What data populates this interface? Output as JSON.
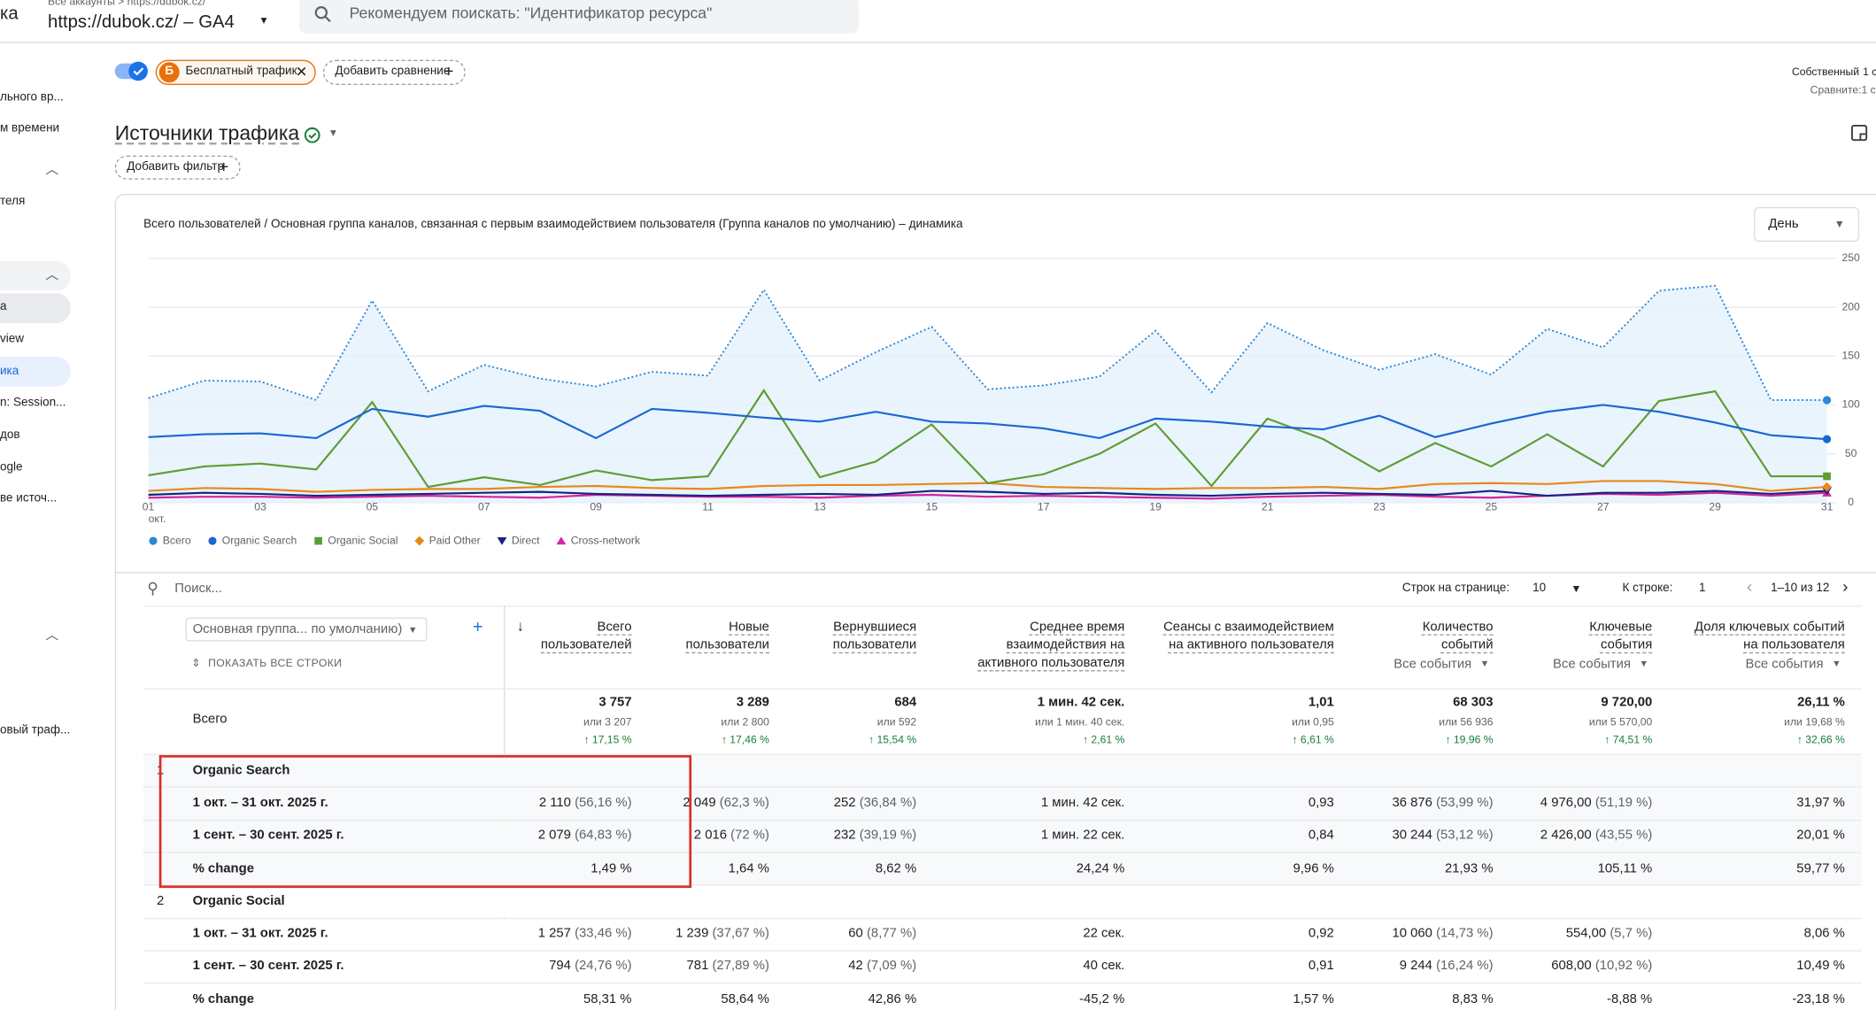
{
  "header": {
    "app": "ка",
    "breadcrumb": "Все аккаунты > https://dubok.cz/",
    "property": "https://dubok.cz/ – GA4",
    "search_placeholder": "Рекомендуем поискать: \"Идентификатор ресурса\""
  },
  "sidebar": [
    "льного вр...",
    "м времени",
    "теля",
    "а",
    "view",
    "ика",
    "n: Session...",
    "дов",
    "ogle",
    "ве источ...",
    "овый траф..."
  ],
  "toolbar": {
    "segment_badge": "Б",
    "segment": "Бесплатный трафик",
    "add_comparison": "Добавить сравнение",
    "date_mode": "Собственный",
    "date_value": "1 с",
    "compare": "Сравните:1 с"
  },
  "report": {
    "title": "Источники трафика",
    "add_filter": "Добавить фильтр"
  },
  "chart_data": {
    "type": "line",
    "title": "Всего пользователей / Основная группа каналов, связанная с первым взаимодействием пользователя (Группа каналов по умолчанию) – динамика",
    "granularity": "День",
    "categories": [
      "01",
      null,
      "03",
      null,
      "05",
      null,
      "07",
      null,
      "09",
      null,
      "11",
      null,
      "13",
      null,
      "15",
      null,
      "17",
      null,
      "19",
      null,
      "21",
      null,
      "23",
      null,
      "25",
      null,
      "27",
      null,
      "29",
      null,
      "31"
    ],
    "x_sublabel": "окт.",
    "ylim": [
      0,
      250
    ],
    "yticks": [
      0,
      50,
      100,
      150,
      200,
      250
    ],
    "grid": true,
    "legend": "bottom",
    "series": [
      {
        "name": "Всего",
        "color": "#2e86d6",
        "dash": "dotted",
        "area": true,
        "marker": "drop",
        "values": [
          107,
          125,
          124,
          105,
          207,
          114,
          141,
          127,
          119,
          134,
          130,
          218,
          125,
          154,
          180,
          116,
          120,
          129,
          176,
          113,
          184,
          156,
          136,
          152,
          131,
          178,
          159,
          217,
          222,
          105,
          105
        ]
      },
      {
        "name": "Organic Search",
        "color": "#1967d2",
        "marker": "circle",
        "values": [
          67,
          70,
          71,
          66,
          96,
          88,
          99,
          94,
          66,
          96,
          92,
          87,
          83,
          93,
          83,
          81,
          76,
          66,
          86,
          83,
          78,
          75,
          89,
          67,
          81,
          93,
          100,
          93,
          82,
          69,
          65
        ]
      },
      {
        "name": "Organic Social",
        "color": "#5f9c32",
        "marker": "square",
        "values": [
          28,
          37,
          40,
          34,
          103,
          16,
          26,
          18,
          33,
          23,
          27,
          115,
          26,
          42,
          80,
          20,
          29,
          50,
          81,
          17,
          86,
          65,
          32,
          61,
          37,
          70,
          37,
          104,
          114,
          27,
          27
        ]
      },
      {
        "name": "Paid Other",
        "color": "#e8891b",
        "marker": "diamond",
        "values": [
          12,
          15,
          14,
          11,
          13,
          14,
          14,
          16,
          17,
          15,
          14,
          17,
          18,
          18,
          19,
          20,
          16,
          15,
          14,
          15,
          15,
          16,
          14,
          19,
          20,
          19,
          22,
          22,
          19,
          12,
          16
        ]
      },
      {
        "name": "Direct",
        "color": "#1a237e",
        "marker": "triangle-down",
        "values": [
          8,
          10,
          9,
          7,
          8,
          9,
          10,
          11,
          9,
          8,
          7,
          8,
          9,
          8,
          12,
          11,
          9,
          10,
          8,
          7,
          9,
          10,
          9,
          8,
          12,
          7,
          10,
          10,
          12,
          9,
          12
        ]
      },
      {
        "name": "Cross-network",
        "color": "#d6249f",
        "marker": "triangle-up",
        "values": [
          5,
          6,
          6,
          5,
          6,
          7,
          6,
          5,
          8,
          7,
          6,
          6,
          5,
          7,
          8,
          6,
          7,
          6,
          5,
          4,
          6,
          7,
          8,
          6,
          5,
          7,
          9,
          8,
          10,
          7,
          10
        ]
      }
    ]
  },
  "table": {
    "search": "Поиск...",
    "rows_per_page_label": "Строк на странице:",
    "rows_per_page": "10",
    "goto_label": "К строке:",
    "goto": "1",
    "range": "1–10 из 12",
    "dimension": "Основная группа... по умолчанию)",
    "show_all": "ПОКАЗАТЬ ВСЕ СТРОКИ",
    "columns": [
      {
        "title": [
          "Всего",
          "пользователей"
        ]
      },
      {
        "title": [
          "Новые",
          "пользователи"
        ]
      },
      {
        "title": [
          "Вернувшиеся",
          "пользователи"
        ]
      },
      {
        "title": [
          "Среднее время",
          "взаимодействия на",
          "активного пользователя"
        ]
      },
      {
        "title": [
          "Сеансы с взаимодействием",
          "на активного пользователя"
        ]
      },
      {
        "title": [
          "Количество",
          "событий"
        ],
        "filter": "Все события"
      },
      {
        "title": [
          "Ключевые",
          "события"
        ],
        "filter": "Все события"
      },
      {
        "title": [
          "Доля ключевых событий",
          "на пользователя"
        ],
        "filter": "Все события"
      }
    ],
    "totals": {
      "label": "Всего",
      "cells": [
        [
          "3 757",
          "или 3 207",
          "17,15 %"
        ],
        [
          "3 289",
          "или 2 800",
          "17,46 %"
        ],
        [
          "684",
          "или 592",
          "15,54 %"
        ],
        [
          "1 мин. 42 сек.",
          "или 1 мин. 40 сек.",
          "2,61 %"
        ],
        [
          "1,01",
          "или 0,95",
          "6,61 %"
        ],
        [
          "68 303",
          "или 56 936",
          "19,96 %"
        ],
        [
          "9 720,00",
          "или 5 570,00",
          "74,51 %"
        ],
        [
          "26,11 %",
          "или 19,68 %",
          "32,66 %"
        ]
      ]
    },
    "groups": [
      {
        "index": "1",
        "name": "Organic Search",
        "rows": [
          {
            "label": "1 окт. – 31 окт. 2025 г.",
            "cells": [
              [
                "2 110",
                "(56,16 %)"
              ],
              [
                "2 049",
                "(62,3 %)"
              ],
              [
                "252",
                "(36,84 %)"
              ],
              "1 мин. 42 сек.",
              "0,93",
              [
                "36 876",
                "(53,99 %)"
              ],
              [
                "4 976,00",
                "(51,19 %)"
              ],
              "31,97 %"
            ]
          },
          {
            "label": "1 сент. – 30 сент. 2025 г.",
            "cells": [
              [
                "2 079",
                "(64,83 %)"
              ],
              [
                "2 016",
                "(72 %)"
              ],
              [
                "232",
                "(39,19 %)"
              ],
              "1 мин. 22 сек.",
              "0,84",
              [
                "30 244",
                "(53,12 %)"
              ],
              [
                "2 426,00",
                "(43,55 %)"
              ],
              "20,01 %"
            ]
          },
          {
            "label": "% change",
            "cells": [
              "1,49 %",
              "1,64 %",
              "8,62 %",
              "24,24 %",
              "9,96 %",
              "21,93 %",
              "105,11 %",
              "59,77 %"
            ]
          }
        ]
      },
      {
        "index": "2",
        "name": "Organic Social",
        "rows": [
          {
            "label": "1 окт. – 31 окт. 2025 г.",
            "cells": [
              [
                "1 257",
                "(33,46 %)"
              ],
              [
                "1 239",
                "(37,67 %)"
              ],
              [
                "60",
                "(8,77 %)"
              ],
              "22 сек.",
              "0,92",
              [
                "10 060",
                "(14,73 %)"
              ],
              [
                "554,00",
                "(5,7 %)"
              ],
              "8,06 %"
            ]
          },
          {
            "label": "1 сент. – 30 сент. 2025 г.",
            "cells": [
              [
                "794",
                "(24,76 %)"
              ],
              [
                "781",
                "(27,89 %)"
              ],
              [
                "42",
                "(7,09 %)"
              ],
              "40 сек.",
              "0,91",
              [
                "9 244",
                "(16,24 %)"
              ],
              [
                "608,00",
                "(10,92 %)"
              ],
              "10,49 %"
            ]
          },
          {
            "label": "% change",
            "cells": [
              "58,31 %",
              "58,64 %",
              "42,86 %",
              "-45,2 %",
              "1,57 %",
              "8,83 %",
              "-8,88 %",
              "-23,18 %"
            ]
          }
        ]
      }
    ]
  }
}
